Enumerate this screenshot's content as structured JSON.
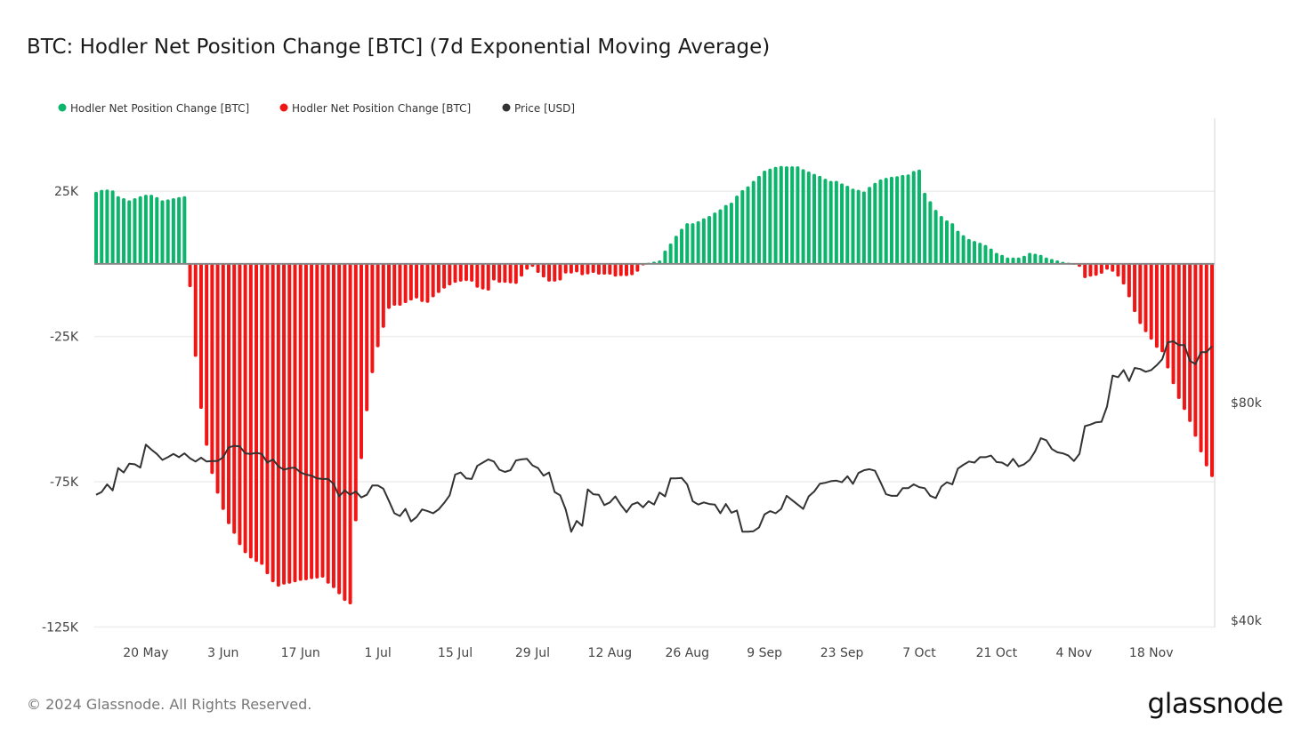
{
  "title": "BTC: Hodler Net Position Change [BTC] (7d Exponential Moving Average)",
  "footer": {
    "copyright": "© 2024 Glassnode. All Rights Reserved.",
    "logo": "glassnode"
  },
  "colors": {
    "positive": "#0cb46c",
    "negative": "#f01616",
    "price": "#333333",
    "grid": "#eeeeee",
    "zero_line": "#888888"
  },
  "chart_data": {
    "type": "bar",
    "title": "BTC: Hodler Net Position Change [BTC] (7d Exponential Moving Average)",
    "legend": {
      "placement": "top-left",
      "entries": [
        {
          "label": "Hodler Net Position Change [BTC]",
          "color": "#0cb46c"
        },
        {
          "label": "Hodler Net Position Change [BTC]",
          "color": "#f01616"
        },
        {
          "label": "Price [USD]",
          "color": "#333333"
        }
      ]
    },
    "x_range": [
      "2024-05-11",
      "2024-11-29"
    ],
    "x_interval": "1d",
    "x_ticks": [
      {
        "label": "20 May",
        "date": "2024-05-20"
      },
      {
        "label": "3 Jun",
        "date": "2024-06-03"
      },
      {
        "label": "17 Jun",
        "date": "2024-06-17"
      },
      {
        "label": "1 Jul",
        "date": "2024-07-01"
      },
      {
        "label": "15 Jul",
        "date": "2024-07-15"
      },
      {
        "label": "29 Jul",
        "date": "2024-07-29"
      },
      {
        "label": "12 Aug",
        "date": "2024-08-12"
      },
      {
        "label": "26 Aug",
        "date": "2024-08-26"
      },
      {
        "label": "9 Sep",
        "date": "2024-09-09"
      },
      {
        "label": "23 Sep",
        "date": "2024-09-23"
      },
      {
        "label": "7 Oct",
        "date": "2024-10-07"
      },
      {
        "label": "21 Oct",
        "date": "2024-10-21"
      },
      {
        "label": "4 Nov",
        "date": "2024-11-04"
      },
      {
        "label": "18 Nov",
        "date": "2024-11-18"
      }
    ],
    "y_left": {
      "ylim": [
        -125000,
        50000
      ],
      "ticks": [
        {
          "label": "25K",
          "value": 25000
        },
        {
          "label": "-25K",
          "value": -25000
        },
        {
          "label": "-75K",
          "value": -75000
        },
        {
          "label": "-125K",
          "value": -125000
        }
      ],
      "scale": "linear"
    },
    "y_right": {
      "ylim": [
        38800,
        132200
      ],
      "ticks": [
        {
          "label": "$80k",
          "value": 80000
        },
        {
          "label": "$40k",
          "value": 40000
        }
      ],
      "scale": "linear"
    },
    "grid": true,
    "series": [
      {
        "name": "Hodler Net Position Change [BTC]",
        "type": "bar",
        "axis": "left",
        "values": [
          24800,
          25500,
          25600,
          25300,
          23300,
          22600,
          21900,
          22600,
          23300,
          23800,
          23800,
          23000,
          21900,
          22200,
          22600,
          23000,
          23300,
          -8000,
          -32000,
          -49900,
          -62600,
          -72300,
          -79100,
          -84700,
          -89600,
          -92900,
          -96800,
          -99600,
          -101400,
          -102600,
          -103600,
          -106800,
          -109600,
          -111100,
          -110400,
          -110100,
          -109600,
          -109100,
          -108900,
          -108500,
          -108300,
          -108000,
          -110100,
          -111600,
          -113700,
          -116000,
          -117200,
          -88600,
          -67200,
          -50700,
          -37600,
          -28700,
          -22000,
          -15500,
          -14400,
          -14400,
          -13500,
          -12600,
          -11900,
          -13100,
          -13400,
          -11500,
          -10000,
          -8500,
          -7400,
          -6500,
          -6100,
          -5900,
          -6100,
          -8200,
          -8800,
          -9200,
          -5700,
          -6500,
          -6500,
          -6700,
          -6900,
          -4400,
          -2000,
          -1000,
          -3100,
          -4700,
          -6100,
          -6100,
          -5700,
          -3300,
          -3300,
          -2900,
          -3900,
          -3600,
          -3100,
          -3700,
          -3700,
          -3700,
          -4400,
          -4200,
          -4200,
          -3900,
          -2700,
          -500,
          400,
          800,
          1200,
          4600,
          7000,
          9700,
          12100,
          14000,
          14000,
          14700,
          15700,
          16500,
          17700,
          18800,
          20300,
          21100,
          23500,
          25400,
          26700,
          28600,
          30300,
          32100,
          32800,
          33400,
          33700,
          33600,
          33600,
          33600,
          32600,
          31800,
          31000,
          30300,
          29300,
          28600,
          28600,
          27700,
          26900,
          25900,
          25500,
          24900,
          26500,
          27900,
          29100,
          29600,
          30000,
          30200,
          30600,
          30800,
          32000,
          32500,
          24500,
          21600,
          18600,
          16500,
          15000,
          14000,
          11400,
          9900,
          8600,
          7900,
          7300,
          6500,
          5300,
          3800,
          3100,
          2200,
          2200,
          2200,
          2800,
          3800,
          3500,
          3100,
          2200,
          1700,
          1200,
          700,
          400,
          -100,
          -1000,
          -4900,
          -4400,
          -4100,
          -3400,
          -2000,
          -2700,
          -4400,
          -7100,
          -11500,
          -16600,
          -20700,
          -23500,
          -26100,
          -28900,
          -30400,
          -36000,
          -41400,
          -46500,
          -50300,
          -54400,
          -59500,
          -64900,
          -69700,
          -73400
        ]
      },
      {
        "name": "Price [USD]",
        "type": "line",
        "axis": "right",
        "values": [
          63100,
          63600,
          65000,
          63900,
          68000,
          67200,
          68800,
          68700,
          68100,
          72300,
          71400,
          70600,
          69500,
          70000,
          70600,
          70000,
          70700,
          69800,
          69200,
          69900,
          69200,
          69300,
          69300,
          70000,
          71800,
          72100,
          72000,
          70700,
          70600,
          70800,
          70600,
          69000,
          69600,
          68300,
          67700,
          68000,
          68100,
          67200,
          66800,
          66600,
          66100,
          66000,
          66000,
          65100,
          62800,
          63900,
          63100,
          63700,
          62600,
          63100,
          64800,
          64800,
          64200,
          62000,
          59700,
          59200,
          60500,
          58200,
          59000,
          60400,
          60100,
          59700,
          60400,
          61600,
          63000,
          66800,
          67200,
          66100,
          66000,
          68400,
          69000,
          69600,
          69200,
          67700,
          67300,
          67600,
          69400,
          69600,
          69700,
          68500,
          68000,
          66600,
          67200,
          63600,
          63000,
          60400,
          56300,
          58300,
          57400,
          64100,
          63200,
          63100,
          61200,
          61700,
          62800,
          61200,
          59900,
          61300,
          61700,
          60800,
          61900,
          61300,
          63500,
          62800,
          66100,
          66100,
          66200,
          65000,
          61900,
          61300,
          61700,
          61400,
          61300,
          59700,
          61400,
          59800,
          60200,
          56300,
          56300,
          56400,
          57100,
          59500,
          60100,
          59700,
          60500,
          62900,
          62100,
          61300,
          60500,
          62800,
          63700,
          65100,
          65300,
          65600,
          65700,
          65400,
          66500,
          65100,
          67100,
          67600,
          67800,
          67500,
          65400,
          63200,
          62900,
          62900,
          64300,
          64300,
          65000,
          64500,
          64300,
          62900,
          62500,
          64600,
          65400,
          65000,
          67900,
          68600,
          69200,
          69000,
          70000,
          70000,
          70300,
          69100,
          69000,
          68400,
          69700,
          68300,
          68700,
          69500,
          71100,
          73500,
          73100,
          71500,
          70900,
          70700,
          70300,
          69300,
          70600,
          75700,
          76000,
          76400,
          76500,
          79300,
          85000,
          84700,
          86000,
          84000,
          86400,
          86200,
          85700,
          86000,
          86900,
          88000,
          91100,
          91300,
          90600,
          90600,
          87700,
          87100,
          89300,
          89300,
          90400
        ]
      }
    ]
  }
}
